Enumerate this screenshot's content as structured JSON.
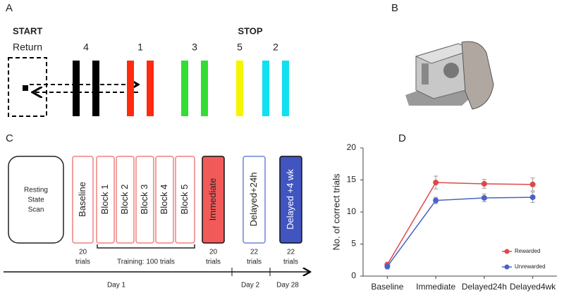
{
  "panel_labels": [
    "A",
    "B",
    "C",
    "D"
  ],
  "task": {
    "start": "START",
    "return": "Return",
    "stop": "STOP",
    "targets": [
      {
        "label": "4",
        "color": "#000000"
      },
      {
        "label": "1",
        "color": "#ff2a10"
      },
      {
        "label": "3",
        "color": "#33dd33"
      },
      {
        "label": "5",
        "color": "#f5f500"
      },
      {
        "label": "2",
        "color": "#11e0f0"
      }
    ]
  },
  "protocol": {
    "rest": [
      "Resting",
      "State",
      "Scan"
    ],
    "boxes": [
      {
        "label": "Baseline",
        "stroke": "#f08080",
        "fill": "#ffffff",
        "trials": [
          "20",
          "trials"
        ]
      },
      {
        "label": "Block 1",
        "stroke": "#f08080",
        "fill": "#ffffff"
      },
      {
        "label": "Block 2",
        "stroke": "#f08080",
        "fill": "#ffffff"
      },
      {
        "label": "Block 3",
        "stroke": "#f08080",
        "fill": "#ffffff"
      },
      {
        "label": "Block 4",
        "stroke": "#f08080",
        "fill": "#ffffff"
      },
      {
        "label": "Block 5",
        "stroke": "#f08080",
        "fill": "#ffffff"
      },
      {
        "label": "Immediate",
        "stroke": "#111111",
        "fill": "#f25a5a",
        "trials": [
          "20",
          "trials"
        ]
      },
      {
        "label": "Delayed+24h",
        "stroke": "#6b86d6",
        "fill": "#ffffff",
        "trials": [
          "22",
          "trials"
        ]
      },
      {
        "label": "Delayed +4 wk",
        "stroke": "#111111",
        "fill": "#4055c0",
        "trials": [
          "22",
          "trials"
        ]
      }
    ],
    "training": "Training: 100 trials",
    "days": [
      "Day 1",
      "Day 2",
      "Day 28"
    ]
  },
  "chart_data": {
    "type": "line",
    "ylabel": "No. of correct trials",
    "categories": [
      "Baseline",
      "Immediate",
      "Delayed24h",
      "Delayed4wk"
    ],
    "series": [
      {
        "name": "Rewarded",
        "color": "#e04848",
        "values": [
          1.8,
          14.6,
          14.4,
          14.3
        ],
        "errors": [
          0.3,
          1.0,
          0.7,
          1.0
        ]
      },
      {
        "name": "Unrewarded",
        "color": "#4a62c8",
        "values": [
          1.5,
          11.8,
          12.2,
          12.3
        ],
        "errors": [
          0.4,
          0.5,
          0.6,
          0.8
        ]
      }
    ],
    "ylim": [
      0,
      20
    ],
    "yticks": [
      0,
      5,
      10,
      15,
      20
    ],
    "grid": false,
    "legend": "lower right"
  }
}
